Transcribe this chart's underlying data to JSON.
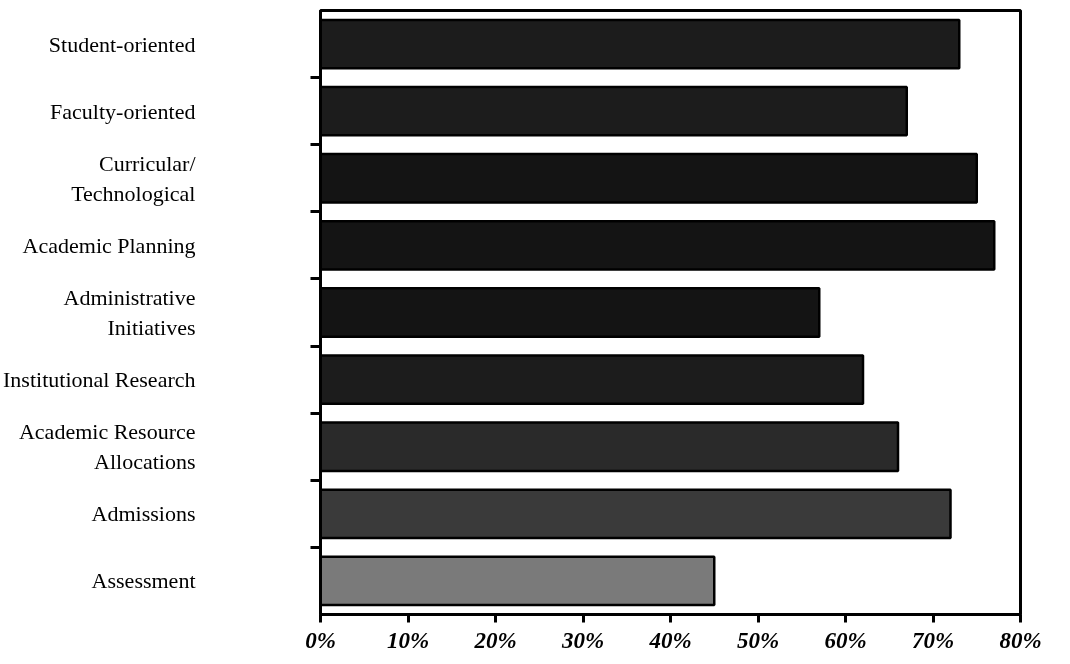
{
  "chart_data": {
    "type": "bar",
    "orientation": "horizontal",
    "categories": [
      "Student-oriented",
      "Faculty-oriented",
      "Curricular/\nTechnological",
      "Academic Planning",
      "Administrative\nInitiatives",
      "Institutional Research",
      "Academic Resource\nAllocations",
      "Admissions",
      "Assessment"
    ],
    "values": [
      73,
      67,
      75,
      77,
      57,
      62,
      66,
      72,
      45
    ],
    "colors": [
      "#1c1c1c",
      "#1c1c1c",
      "#141414",
      "#141414",
      "#141414",
      "#1c1c1c",
      "#2a2a2a",
      "#3a3a3a",
      "#7a7a7a"
    ],
    "xlim": [
      0,
      80
    ],
    "xticks": [
      {
        "value": 0,
        "label": "0%"
      },
      {
        "value": 10,
        "label": "10%"
      },
      {
        "value": 20,
        "label": "20%"
      },
      {
        "value": 30,
        "label": "30%"
      },
      {
        "value": 40,
        "label": "40%"
      },
      {
        "value": 50,
        "label": "50%"
      },
      {
        "value": 60,
        "label": "60%"
      },
      {
        "value": 70,
        "label": "70%"
      },
      {
        "value": 80,
        "label": "80%"
      }
    ],
    "grid": false
  }
}
